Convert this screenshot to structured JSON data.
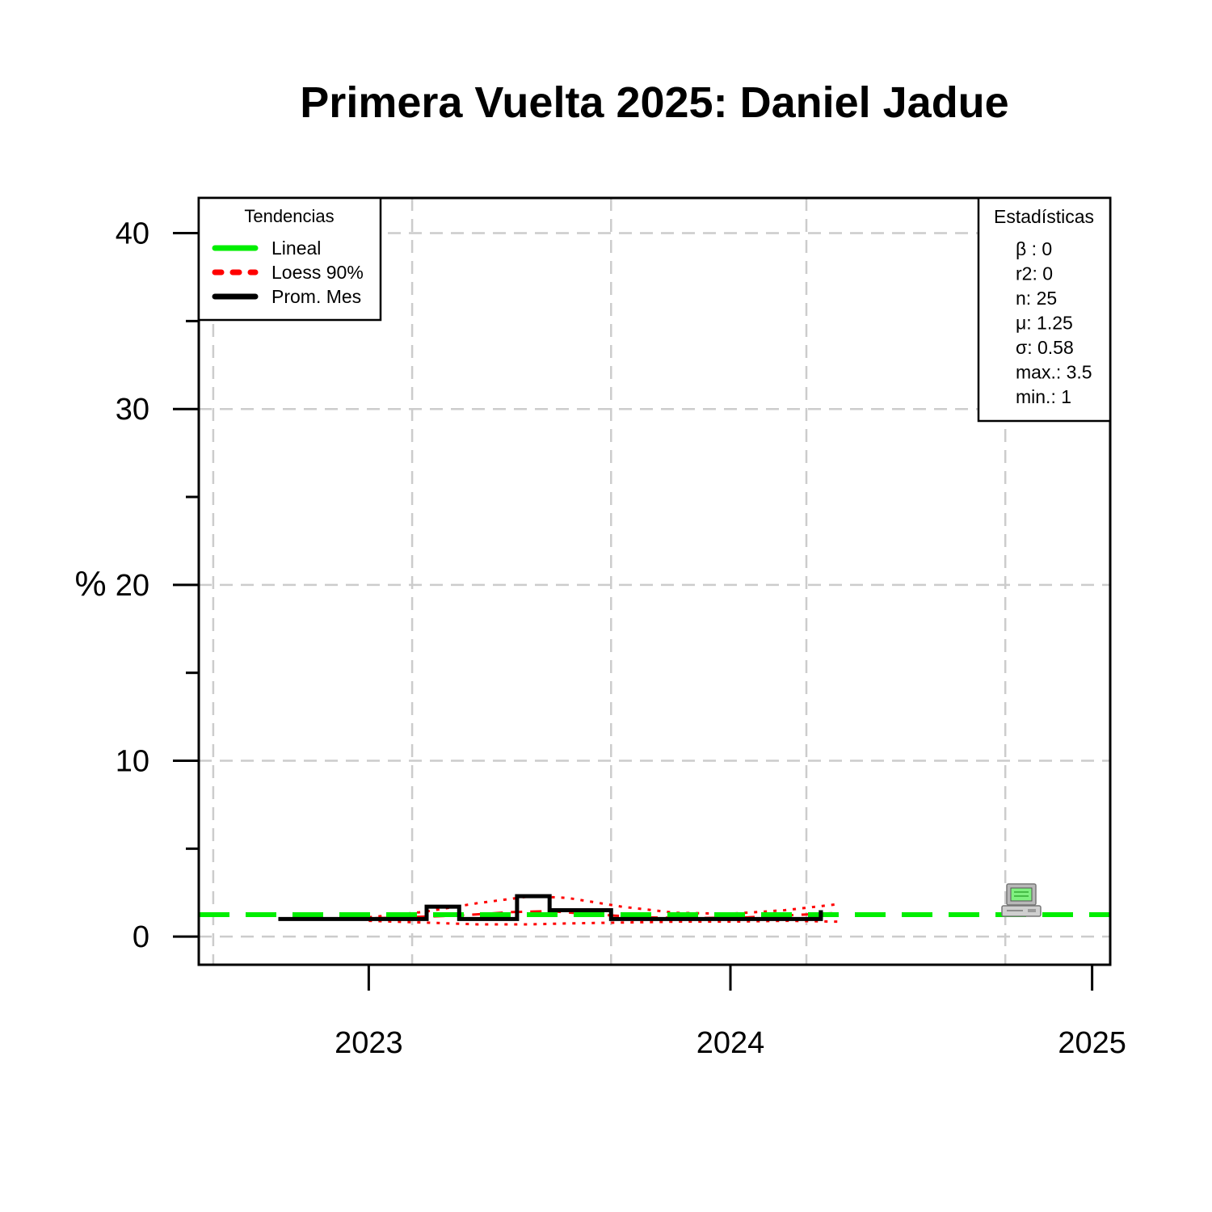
{
  "chart_data": {
    "type": "line",
    "title": "Primera Vuelta 2025: Daniel Jadue",
    "ylabel": "%",
    "xlabel": "",
    "ylim": [
      -1.6,
      42
    ],
    "xlim": [
      2022.53,
      2025.05
    ],
    "y_ticks": [
      0,
      10,
      20,
      30,
      40
    ],
    "y_minor_ticks": [
      5,
      15,
      25,
      35
    ],
    "x_ticks": [
      2023,
      2024,
      2025
    ],
    "x_tick_labels": [
      "2023",
      "2024",
      "2025"
    ],
    "grid": true,
    "grid_x_dashed": [
      2022.57,
      2023.12,
      2023.67,
      2024.21,
      2024.76
    ],
    "grid_y_dashed": [
      0,
      10,
      20,
      30,
      40
    ],
    "series": [
      {
        "name": "Prom. Mes",
        "style": "step",
        "color": "#000000",
        "x": [
          2022.75,
          2023.16,
          2023.25,
          2023.41,
          2023.5,
          2023.67,
          2024.25
        ],
        "y": [
          1.0,
          1.7,
          1.0,
          2.3,
          1.5,
          1.0,
          1.5
        ]
      },
      {
        "name": "Lineal",
        "style": "dashed",
        "color": "#00ee00",
        "x": [
          2022.53,
          2025.05
        ],
        "y": [
          1.25,
          1.25
        ]
      },
      {
        "name": "Loess 90%",
        "style": "dashed",
        "color": "#ff0000",
        "x": [
          2022.75,
          2022.95,
          2023.1,
          2023.25,
          2023.4,
          2023.5,
          2023.6,
          2023.75,
          2023.9,
          2024.05,
          2024.2,
          2024.3
        ],
        "y": [
          1.0,
          1.0,
          1.1,
          1.2,
          1.4,
          1.45,
          1.3,
          1.1,
          1.05,
          1.1,
          1.25,
          1.35
        ]
      },
      {
        "name": "Loess 90% (upper)",
        "style": "dotted",
        "color": "#ff0000",
        "x": [
          2023.0,
          2023.15,
          2023.3,
          2023.45,
          2023.55,
          2023.7,
          2023.85,
          2024.0,
          2024.15,
          2024.3
        ],
        "y": [
          1.1,
          1.4,
          1.9,
          2.3,
          2.2,
          1.7,
          1.35,
          1.3,
          1.5,
          1.85
        ]
      },
      {
        "name": "Loess 90% (lower)",
        "style": "dotted",
        "color": "#ff0000",
        "x": [
          2023.0,
          2023.15,
          2023.3,
          2023.45,
          2023.55,
          2023.7,
          2023.85,
          2024.0,
          2024.15,
          2024.3
        ],
        "y": [
          0.9,
          0.8,
          0.7,
          0.7,
          0.75,
          0.8,
          0.85,
          0.85,
          0.9,
          0.85
        ]
      }
    ],
    "legend_trends": {
      "title": "Tendencias",
      "placement": "top-left",
      "items": [
        {
          "label": "Lineal",
          "color": "#00ee00",
          "style": "solid"
        },
        {
          "label": "Loess 90%",
          "color": "#ff0000",
          "style": "dashed"
        },
        {
          "label": "Prom. Mes",
          "color": "#000000",
          "style": "solid"
        }
      ]
    },
    "legend_stats": {
      "title": "Estadísticas",
      "placement": "top-right",
      "lines": [
        "β : 0",
        "r2: 0",
        "n: 25",
        "μ: 1.25",
        "σ: 0.58",
        "max.: 3.5",
        "min.: 1"
      ]
    },
    "watermark_icon": "computer-icon"
  }
}
